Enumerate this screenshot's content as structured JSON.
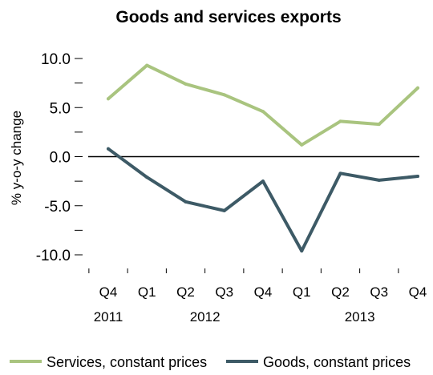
{
  "chart_data": {
    "type": "line",
    "title": "Goods and services exports",
    "ylabel": "% y-o-y change",
    "xlabel": "",
    "ylim": [
      -10.0,
      10.0
    ],
    "y_ticks": [
      "10.0",
      "5.0",
      "0.0",
      "-5.0",
      "-10.0"
    ],
    "categories": [
      "Q4 2011",
      "Q1 2012",
      "Q2 2012",
      "Q3 2012",
      "Q4 2012",
      "Q1 2013",
      "Q2 2013",
      "Q3 2013",
      "Q4 2013"
    ],
    "quarter_labels": [
      "Q4",
      "Q1",
      "Q2",
      "Q3",
      "Q4",
      "Q1",
      "Q2",
      "Q3",
      "Q4"
    ],
    "year_labels": [
      {
        "label": "2011",
        "center_index": 0
      },
      {
        "label": "2012",
        "center_index": 2.5
      },
      {
        "label": "2013",
        "center_index": 6.5
      }
    ],
    "series": [
      {
        "name": "Services, constant prices",
        "color": "#a9c47f",
        "values": [
          5.9,
          9.3,
          7.4,
          6.3,
          4.6,
          1.2,
          3.6,
          3.3,
          7.0
        ]
      },
      {
        "name": "Goods, constant prices",
        "color": "#3d5a66",
        "values": [
          0.8,
          -2.1,
          -4.6,
          -5.5,
          -2.5,
          -9.6,
          -1.7,
          -2.4,
          -2.0
        ]
      }
    ],
    "zero_line": true,
    "grid": false,
    "legend_position": "bottom"
  }
}
